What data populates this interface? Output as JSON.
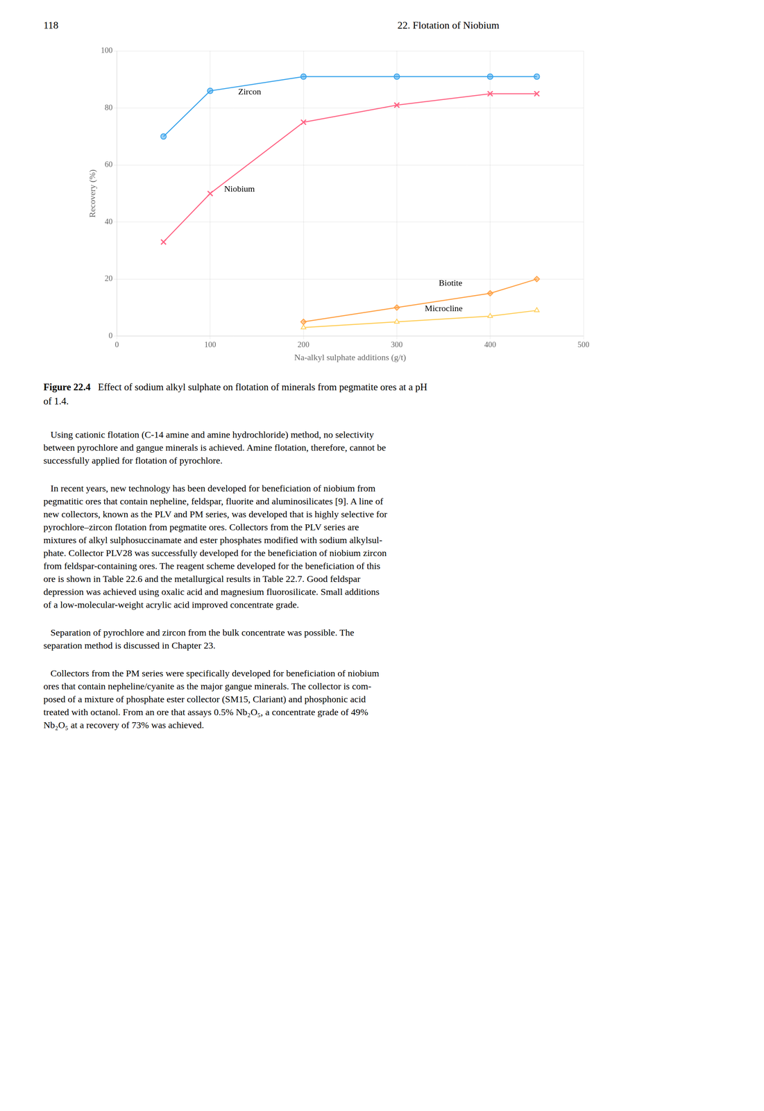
{
  "header_left": "118",
  "header_right": "22.   Flotation of Niobium",
  "caption_label": "Figure 22.4",
  "caption_text": "   Effect of sodium alkyl sulphate on flotation of minerals from pegmatite ores at a pH\nof 1.4.",
  "paragraphs": [
    [
      "   Using cationic flotation (C-14 amine and amine hydrochloride) method, no selectivity",
      "between pyrochlore and gangue minerals is achieved. Amine flotation, therefore, cannot be",
      "successfully applied for flotation of pyrochlore."
    ],
    [
      "   In recent years, new technology has been developed for beneficiation of niobium from",
      "pegmatitic ores that contain nepheline, feldspar, fluorite and aluminosilicates [9]. A line of",
      "new collectors, known as the PLV and PM series, was developed that is highly selective for",
      "pyrochlore–zircon flotation from pegmatite ores. Collectors from the PLV series are",
      "mixtures of alkyl sulphosuccinamate and ester phosphates modified with sodium alkylsul-",
      "phate. Collector PLV28 was successfully developed for the beneficiation of niobium zircon",
      "from feldspar-containing ores. The reagent scheme developed for the beneficiation of this",
      "ore is shown in Table 22.6 and the metallurgical results in Table 22.7. Good feldspar",
      "depression was achieved using oxalic acid and magnesium fluorosilicate. Small additions",
      "of a low-molecular-weight acrylic acid improved concentrate grade."
    ],
    [
      "   Separation of pyrochlore and zircon from the bulk concentrate was possible. The",
      "separation method is discussed in Chapter 23."
    ],
    [
      "   Collectors from the PM series were specifically developed for beneficiation of niobium",
      "ores that contain nepheline/cyanite as the major gangue minerals. The collector is com-",
      "posed of a mixture of phosphate ester collector (SM15, Clariant) and phosphonic acid",
      "treated with octanol. From an ore that assays 0.5% Nb₂O₅, a concentrate grade of 49%",
      "Nb₂O₅ at a recovery of 73% was achieved."
    ]
  ],
  "chart_data": {
    "type": "line",
    "x_label": "Na-alkyl sulphate additions (g/t)",
    "y_label": "Recovery (%)",
    "series": [
      {
        "name": "Zircon",
        "marker": "circle",
        "x": [
          50,
          100,
          200,
          300,
          400,
          450
        ],
        "values": [
          70,
          86,
          91,
          91,
          91,
          91
        ]
      },
      {
        "name": "Niobium",
        "marker": "x",
        "x": [
          50,
          100,
          200,
          300,
          400,
          450
        ],
        "values": [
          33,
          50,
          75,
          81,
          85,
          85
        ]
      },
      {
        "name": "Biotite",
        "marker": "diamond",
        "x": [
          200,
          300,
          400,
          450
        ],
        "values": [
          5,
          10,
          15,
          20
        ]
      },
      {
        "name": "Microcline",
        "marker": "open_triangle",
        "x": [
          200,
          300,
          400,
          450
        ],
        "values": [
          3,
          5,
          7,
          9
        ]
      }
    ],
    "annotations": [
      {
        "text": "Zircon",
        "x": 130,
        "y": 84
      },
      {
        "text": "Niobium",
        "x": 115,
        "y": 50
      },
      {
        "text": "Biotite",
        "x": 345,
        "y": 17
      },
      {
        "text": "Microcline",
        "x": 330,
        "y": 8
      }
    ],
    "xlim": [
      0,
      500
    ],
    "ylim": [
      0,
      100
    ],
    "xticks": [
      0,
      100,
      200,
      300,
      400,
      500
    ],
    "yticks": [
      0,
      20,
      40,
      60,
      80,
      100
    ],
    "grid": true
  }
}
